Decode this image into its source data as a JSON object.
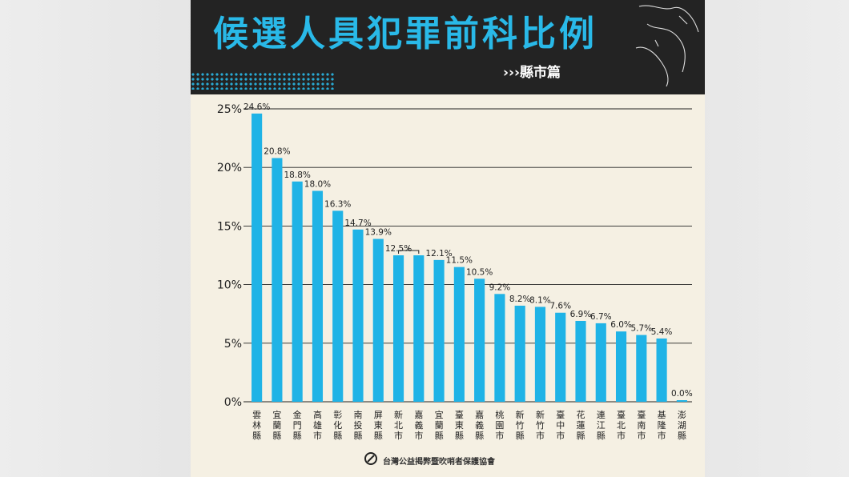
{
  "header": {
    "title": "候選人具犯罪前科比例",
    "subtitle": "›››縣市篇"
  },
  "footer": {
    "org_name": "台灣公益揭弊暨吹哨者保護協會"
  },
  "colors": {
    "bar": "#1fb3e6",
    "title": "#29b9e8",
    "banner": "#232323",
    "background": "#f5f0e3"
  },
  "chart_data": {
    "type": "bar",
    "categories": [
      "雲林縣",
      "宜蘭縣",
      "金門縣",
      "高雄市",
      "彰化縣",
      "南投縣",
      "屏東縣",
      "新北市",
      "嘉義市",
      "宜蘭縣",
      "臺東縣",
      "嘉義縣",
      "桃園市",
      "新竹縣",
      "新竹市",
      "臺中市",
      "花蓮縣",
      "連江縣",
      "臺北市",
      "臺南市",
      "基隆市",
      "澎湖縣"
    ],
    "values": [
      24.6,
      20.8,
      18.8,
      18.0,
      16.3,
      14.7,
      13.9,
      12.5,
      12.5,
      12.1,
      11.5,
      10.5,
      9.2,
      8.2,
      8.1,
      7.6,
      6.9,
      6.7,
      6.0,
      5.7,
      5.4,
      0.0
    ],
    "value_labels": [
      "24.6%",
      "20.8%",
      "18.8%",
      "18.0%",
      "16.3%",
      "14.7%",
      "13.9%",
      "12.5%",
      "",
      "12.1%",
      "11.5%",
      "10.5%",
      "9.2%",
      "8.2%",
      "8.1%",
      "7.6%",
      "6.9%",
      "6.7%",
      "6.0%",
      "5.7%",
      "5.4%",
      "0.0%"
    ],
    "y_ticks": [
      0,
      5,
      10,
      15,
      20,
      25
    ],
    "y_tick_labels": [
      "0%",
      "5%",
      "10%",
      "15%",
      "20%",
      "25%"
    ],
    "ylim": [
      0,
      25
    ],
    "grid": true,
    "title": "",
    "xlabel": "",
    "ylabel": ""
  }
}
